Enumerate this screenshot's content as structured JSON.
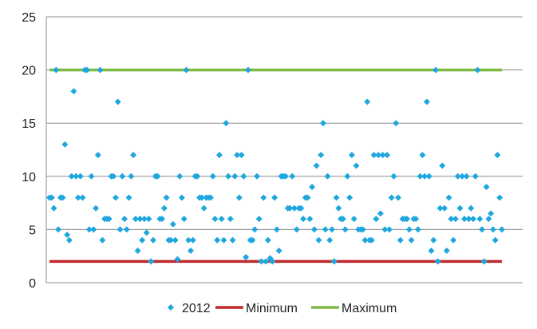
{
  "chart_data": {
    "type": "scatter",
    "ylim": [
      0,
      25
    ],
    "yticks": [
      "0",
      "5",
      "10",
      "15",
      "20",
      "25"
    ],
    "grid": true,
    "legend_position": "bottom",
    "series": [
      {
        "name": "2012",
        "kind": "scatter",
        "marker": "diamond",
        "color": "#1ea7de",
        "values": [
          8,
          8,
          7,
          20,
          5,
          8,
          8,
          13,
          4.5,
          4,
          10,
          18,
          10,
          8,
          10,
          8,
          20,
          20,
          5,
          10,
          5,
          7,
          12,
          20,
          4,
          6,
          6,
          6,
          10,
          10,
          8,
          17,
          5,
          10,
          6,
          5,
          8,
          10,
          12,
          6,
          3,
          6,
          4,
          6,
          4.7,
          6,
          2,
          4,
          10,
          10,
          6,
          6,
          7,
          8,
          4,
          4,
          5.5,
          4,
          2.2,
          10,
          8,
          6,
          20,
          4,
          3,
          4,
          10,
          10,
          8,
          8,
          7,
          8,
          8,
          8,
          10,
          6,
          4,
          12,
          6,
          4,
          15,
          10,
          6,
          4,
          10,
          12,
          8,
          12,
          10,
          2.4,
          20,
          4,
          4,
          5,
          10,
          6,
          2,
          8,
          2,
          4,
          2.3,
          2,
          8,
          5,
          3,
          10,
          10,
          10,
          7,
          7,
          10,
          7,
          5,
          7,
          7,
          6,
          8,
          8,
          6,
          9,
          5,
          11,
          4,
          12,
          15,
          5,
          10,
          4,
          5,
          2,
          8,
          7,
          6,
          6,
          5,
          10,
          8,
          12,
          6,
          11,
          5,
          5,
          5,
          4,
          17,
          4,
          4,
          12,
          6,
          12,
          6.5,
          12,
          5,
          12,
          5,
          8,
          10,
          15,
          8,
          4,
          6,
          6,
          6,
          5,
          4,
          6,
          6,
          5,
          10,
          12,
          10,
          17,
          10,
          3,
          4,
          20,
          2,
          7,
          11,
          7,
          3,
          8,
          6,
          4,
          6,
          10,
          7,
          10,
          6,
          10,
          6,
          7,
          6,
          10,
          20,
          6,
          5,
          2,
          9,
          6,
          6.5,
          5,
          4,
          12,
          8,
          5
        ]
      },
      {
        "name": "Minimum",
        "kind": "line",
        "color": "#c0282d",
        "value": 2
      },
      {
        "name": "Maximum",
        "kind": "line",
        "color": "#7dbb42",
        "value": 20
      }
    ]
  }
}
